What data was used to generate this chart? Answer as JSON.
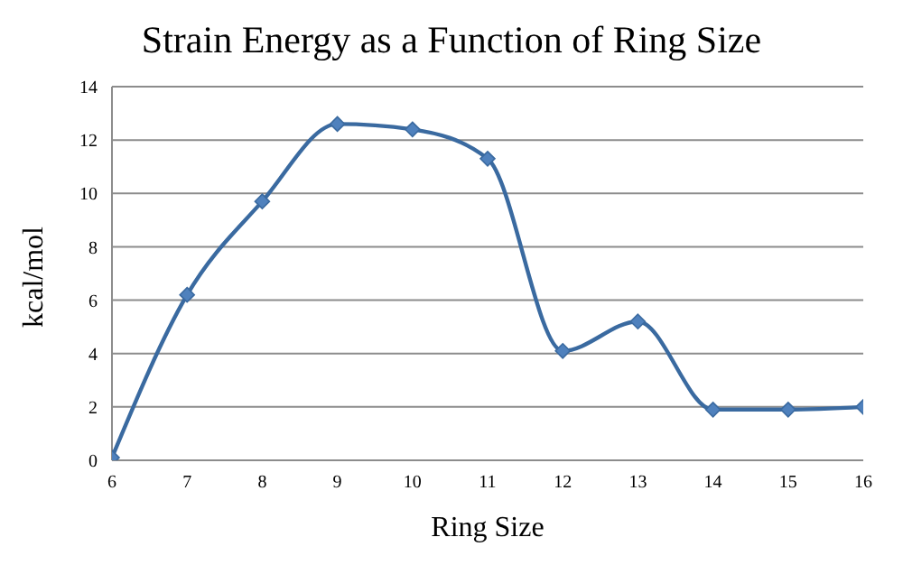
{
  "chart_data": {
    "type": "line",
    "title": "Strain Energy as a Function of Ring Size",
    "xlabel": "Ring Size",
    "ylabel": "kcal/mol",
    "x": [
      6,
      7,
      8,
      9,
      10,
      11,
      12,
      13,
      14,
      15,
      16
    ],
    "series": [
      {
        "color": "#3a6aa0",
        "values": [
          0.1,
          6.2,
          9.7,
          12.6,
          12.4,
          11.3,
          4.1,
          5.2,
          1.9,
          1.9,
          2.0
        ]
      }
    ],
    "xlim": [
      6,
      16
    ],
    "xticks": [
      6,
      7,
      8,
      9,
      10,
      11,
      12,
      13,
      14,
      15,
      16
    ],
    "ylim": [
      0,
      14
    ],
    "yticks": [
      0,
      2,
      4,
      6,
      8,
      10,
      12,
      14
    ],
    "grid": "y",
    "marker": "diamond",
    "line_style": "solid",
    "legend": false
  }
}
